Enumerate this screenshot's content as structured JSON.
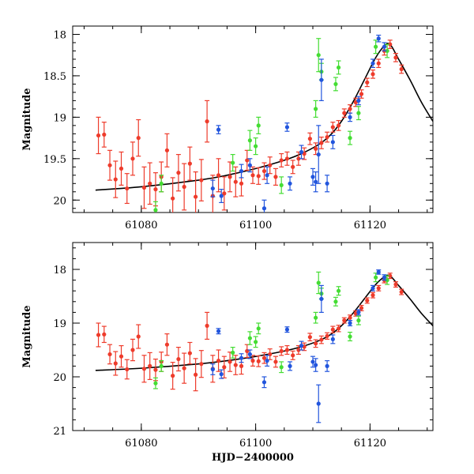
{
  "chart_data": [
    {
      "type": "scatter",
      "panel": "top",
      "xlabel": "",
      "ylabel": "Magnitude",
      "xlim": [
        61068,
        61131
      ],
      "ylim": [
        20.15,
        17.9
      ],
      "y_inverted": true,
      "x_ticks": [
        61080,
        61100,
        61120
      ],
      "x_tick_labels": [
        "61080",
        "61100",
        "61120"
      ],
      "y_ticks": [
        18,
        18.5,
        19,
        19.5,
        20
      ],
      "y_tick_labels": [
        "18",
        "18.5",
        "19",
        "19.5",
        "20"
      ],
      "model_curve": {
        "name": "model",
        "color": "#000000",
        "x": [
          61072,
          61080,
          61090,
          61095,
          61100,
          61105,
          61108,
          61111,
          61113,
          61115,
          61117,
          61119,
          61121,
          61122.5,
          61123.5,
          61125,
          61127,
          61129,
          61131
        ],
        "y": [
          19.88,
          19.84,
          19.76,
          19.7,
          19.62,
          19.52,
          19.44,
          19.33,
          19.22,
          19.05,
          18.82,
          18.55,
          18.28,
          18.14,
          18.12,
          18.3,
          18.55,
          18.82,
          19.05
        ]
      },
      "series": [
        {
          "name": "red",
          "color": "#ee3b2b",
          "x": [
            61072.5,
            61073.5,
            61074.5,
            61075.5,
            61076.5,
            61077.5,
            61078.5,
            61079.5,
            61080.5,
            61081.5,
            61082.5,
            61083.5,
            61084.5,
            61085.5,
            61086.5,
            61087.5,
            61088.5,
            61089.5,
            61090.5,
            61091.5,
            61092.5,
            61093.5,
            61094.5,
            61095.5,
            61096.5,
            61097.5,
            61098.5,
            61099.5,
            61100.5,
            61101.5,
            61102.5,
            61103.5,
            61104.5,
            61105.5,
            61106.5,
            61107.5,
            61108.5,
            61109.5,
            61110.5,
            61111.5,
            61112.5,
            61113.5,
            61114.5,
            61115.5,
            61116.5,
            61117.5,
            61118.5,
            61119.5,
            61120.5,
            61121.5,
            61122.5,
            61123.5,
            61124.5,
            61125.5
          ],
          "y": [
            19.22,
            19.21,
            19.58,
            19.75,
            19.62,
            19.86,
            19.5,
            19.25,
            19.85,
            19.8,
            19.87,
            19.72,
            19.4,
            19.98,
            19.67,
            19.84,
            19.56,
            19.96,
            19.76,
            19.05,
            19.95,
            19.7,
            19.92,
            19.72,
            19.78,
            19.8,
            19.52,
            19.7,
            19.71,
            19.65,
            19.58,
            19.72,
            19.52,
            19.5,
            19.6,
            19.5,
            19.44,
            19.26,
            19.38,
            19.31,
            19.24,
            19.12,
            19.1,
            18.95,
            18.9,
            18.82,
            18.72,
            18.58,
            18.48,
            18.35,
            18.2,
            18.12,
            18.28,
            18.42
          ],
          "err": [
            0.22,
            0.15,
            0.18,
            0.22,
            0.2,
            0.18,
            0.2,
            0.22,
            0.25,
            0.25,
            0.2,
            0.18,
            0.2,
            0.25,
            0.22,
            0.28,
            0.2,
            0.3,
            0.25,
            0.25,
            0.25,
            0.2,
            0.2,
            0.18,
            0.18,
            0.15,
            0.12,
            0.1,
            0.1,
            0.1,
            0.1,
            0.1,
            0.08,
            0.08,
            0.08,
            0.08,
            0.07,
            0.07,
            0.07,
            0.07,
            0.06,
            0.06,
            0.06,
            0.05,
            0.05,
            0.05,
            0.05,
            0.05,
            0.05,
            0.05,
            0.05,
            0.05,
            0.05,
            0.05
          ]
        },
        {
          "name": "green",
          "color": "#44dd33",
          "x": [
            61082.5,
            61083.5,
            61096.0,
            61099.0,
            61100.0,
            61100.5,
            61104.5,
            61110.5,
            61111.0,
            61111.5,
            61114.0,
            61114.5,
            61116.5,
            61118.0,
            61121.0,
            61123.0
          ],
          "y": [
            20.12,
            19.8,
            19.55,
            19.28,
            19.35,
            19.1,
            19.82,
            18.9,
            18.25,
            18.45,
            18.6,
            18.4,
            19.25,
            18.95,
            18.15,
            18.2
          ],
          "err": [
            0.1,
            0.1,
            0.1,
            0.12,
            0.1,
            0.1,
            0.1,
            0.1,
            0.2,
            0.1,
            0.08,
            0.08,
            0.08,
            0.08,
            0.08,
            0.08
          ]
        },
        {
          "name": "blue",
          "color": "#2255dd",
          "x": [
            61092.5,
            61093.5,
            61094.0,
            61097.5,
            61099.0,
            61101.5,
            61102.0,
            61105.5,
            61106.0,
            61108.0,
            61110.0,
            61110.5,
            61111.0,
            61111.5,
            61112.5,
            61113.5,
            61116.5,
            61118.0,
            61120.5,
            61121.5,
            61122.5
          ],
          "y": [
            19.86,
            19.15,
            19.95,
            19.65,
            19.58,
            20.1,
            19.7,
            19.12,
            19.8,
            19.42,
            19.72,
            19.78,
            19.45,
            18.55,
            19.8,
            19.3,
            19.0,
            18.8,
            18.35,
            18.05,
            18.15
          ],
          "err": [
            0.1,
            0.05,
            0.08,
            0.08,
            0.08,
            0.1,
            0.1,
            0.05,
            0.08,
            0.08,
            0.1,
            0.12,
            0.35,
            0.25,
            0.1,
            0.08,
            0.05,
            0.05,
            0.05,
            0.04,
            0.05
          ]
        }
      ]
    },
    {
      "type": "scatter",
      "panel": "bottom",
      "xlabel": "HJD−2400000",
      "ylabel": "Magnitude",
      "xlim": [
        61068,
        61131
      ],
      "ylim": [
        21.0,
        17.5
      ],
      "y_inverted": true,
      "x_ticks": [
        61080,
        61100,
        61120
      ],
      "x_tick_labels": [
        "61080",
        "61100",
        "61120"
      ],
      "y_ticks": [
        18,
        19,
        20,
        21
      ],
      "y_tick_labels": [
        "18",
        "19",
        "20",
        "21"
      ],
      "model_curve": {
        "name": "model",
        "color": "#000000",
        "x": [
          61072,
          61080,
          61090,
          61095,
          61100,
          61105,
          61108,
          61111,
          61113,
          61115,
          61117,
          61119,
          61121,
          61122.5,
          61123.5,
          61125,
          61127,
          61129,
          61131
        ],
        "y": [
          19.88,
          19.84,
          19.76,
          19.7,
          19.62,
          19.52,
          19.44,
          19.33,
          19.22,
          19.05,
          18.82,
          18.55,
          18.28,
          18.14,
          18.12,
          18.3,
          18.55,
          18.82,
          19.05
        ]
      },
      "series": [
        {
          "name": "red",
          "color": "#ee3b2b",
          "x": [
            61072.5,
            61073.5,
            61074.5,
            61075.5,
            61076.5,
            61077.5,
            61078.5,
            61079.5,
            61080.5,
            61081.5,
            61082.5,
            61083.5,
            61084.5,
            61085.5,
            61086.5,
            61087.5,
            61088.5,
            61089.5,
            61090.5,
            61091.5,
            61092.5,
            61093.5,
            61094.5,
            61095.5,
            61096.5,
            61097.5,
            61098.5,
            61099.5,
            61100.5,
            61101.5,
            61102.5,
            61103.5,
            61104.5,
            61105.5,
            61106.5,
            61107.5,
            61108.5,
            61109.5,
            61110.5,
            61111.5,
            61112.5,
            61113.5,
            61114.5,
            61115.5,
            61116.5,
            61117.5,
            61118.5,
            61119.5,
            61120.5,
            61121.5,
            61122.5,
            61123.5,
            61124.5,
            61125.5
          ],
          "y": [
            19.22,
            19.21,
            19.58,
            19.75,
            19.62,
            19.86,
            19.5,
            19.25,
            19.85,
            19.8,
            19.87,
            19.72,
            19.4,
            19.98,
            19.67,
            19.84,
            19.56,
            19.96,
            19.76,
            19.05,
            19.85,
            19.7,
            19.82,
            19.72,
            19.78,
            19.8,
            19.52,
            19.7,
            19.71,
            19.65,
            19.58,
            19.72,
            19.52,
            19.5,
            19.6,
            19.5,
            19.44,
            19.26,
            19.38,
            19.31,
            19.24,
            19.12,
            19.1,
            18.95,
            18.9,
            18.82,
            18.72,
            18.58,
            18.48,
            18.35,
            18.2,
            18.12,
            18.28,
            18.42
          ],
          "err": [
            0.22,
            0.15,
            0.18,
            0.22,
            0.2,
            0.18,
            0.2,
            0.22,
            0.25,
            0.25,
            0.2,
            0.18,
            0.2,
            0.25,
            0.22,
            0.28,
            0.2,
            0.3,
            0.25,
            0.25,
            0.25,
            0.2,
            0.2,
            0.18,
            0.18,
            0.15,
            0.12,
            0.1,
            0.1,
            0.1,
            0.1,
            0.1,
            0.08,
            0.08,
            0.08,
            0.08,
            0.07,
            0.07,
            0.07,
            0.07,
            0.06,
            0.06,
            0.06,
            0.05,
            0.05,
            0.05,
            0.05,
            0.05,
            0.05,
            0.05,
            0.05,
            0.05,
            0.05,
            0.05
          ]
        },
        {
          "name": "green",
          "color": "#44dd33",
          "x": [
            61082.5,
            61083.5,
            61096.0,
            61099.0,
            61100.0,
            61100.5,
            61104.5,
            61110.5,
            61111.0,
            61111.5,
            61114.0,
            61114.5,
            61116.5,
            61118.0,
            61121.0,
            61123.0
          ],
          "y": [
            20.12,
            19.8,
            19.55,
            19.28,
            19.35,
            19.1,
            19.82,
            18.9,
            18.25,
            18.45,
            18.6,
            18.4,
            19.25,
            18.95,
            18.15,
            18.2
          ],
          "err": [
            0.1,
            0.1,
            0.1,
            0.12,
            0.1,
            0.1,
            0.1,
            0.1,
            0.2,
            0.1,
            0.08,
            0.08,
            0.08,
            0.08,
            0.08,
            0.08
          ]
        },
        {
          "name": "blue",
          "color": "#2255dd",
          "x": [
            61092.5,
            61093.5,
            61094.0,
            61097.5,
            61099.0,
            61101.5,
            61102.0,
            61105.5,
            61106.0,
            61108.0,
            61110.0,
            61110.5,
            61111.0,
            61111.5,
            61112.5,
            61113.5,
            61116.5,
            61118.0,
            61120.5,
            61121.5,
            61122.5
          ],
          "y": [
            19.86,
            19.15,
            19.95,
            19.65,
            19.58,
            20.1,
            19.7,
            19.12,
            19.8,
            19.42,
            19.72,
            19.78,
            20.5,
            18.55,
            19.8,
            19.3,
            19.0,
            18.8,
            18.35,
            18.05,
            18.15
          ],
          "err": [
            0.1,
            0.05,
            0.08,
            0.08,
            0.08,
            0.1,
            0.1,
            0.05,
            0.08,
            0.08,
            0.1,
            0.12,
            0.35,
            0.25,
            0.1,
            0.08,
            0.05,
            0.05,
            0.05,
            0.04,
            0.05
          ]
        }
      ]
    }
  ]
}
